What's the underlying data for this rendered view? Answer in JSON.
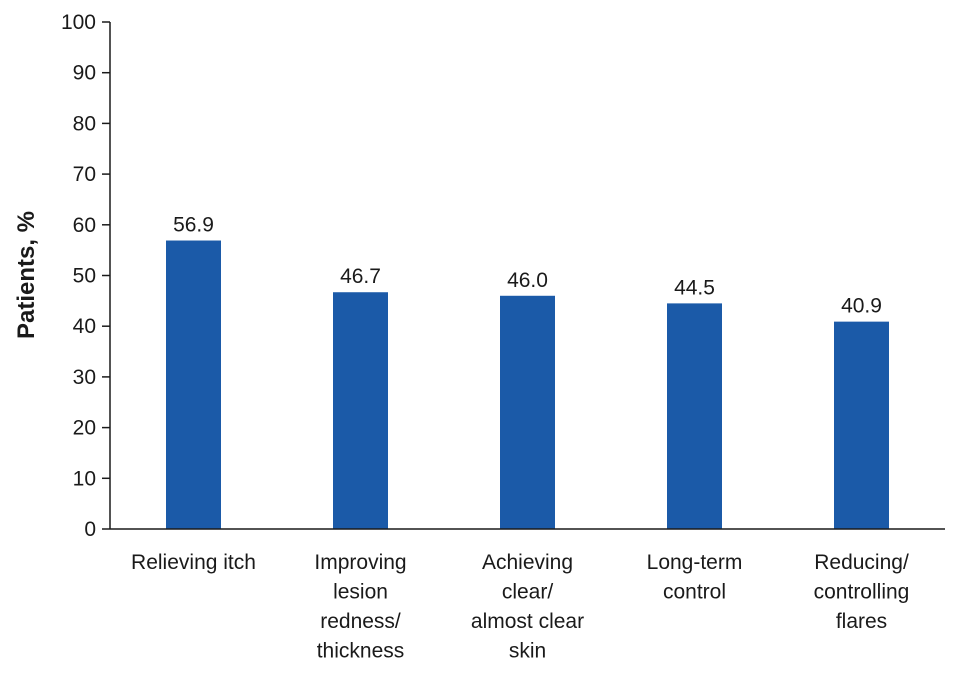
{
  "chart_data": {
    "type": "bar",
    "categories": [
      [
        "Relieving itch"
      ],
      [
        "Improving",
        "lesion",
        "redness/",
        "thickness"
      ],
      [
        "Achieving",
        "clear/",
        "almost clear",
        "skin"
      ],
      [
        "Long-term",
        "control"
      ],
      [
        "Reducing/",
        "controlling",
        "flares"
      ]
    ],
    "values": [
      56.9,
      46.7,
      46.0,
      44.5,
      40.9
    ],
    "value_labels": [
      "56.9",
      "46.7",
      "46.0",
      "44.5",
      "40.9"
    ],
    "ylabel": "Patients, %",
    "xlabel": "",
    "ylim": [
      0,
      100
    ],
    "yticks": [
      0,
      10,
      20,
      30,
      40,
      50,
      60,
      70,
      80,
      90,
      100
    ],
    "bar_color": "#1b5aa8",
    "grid": false,
    "legend": "none"
  }
}
